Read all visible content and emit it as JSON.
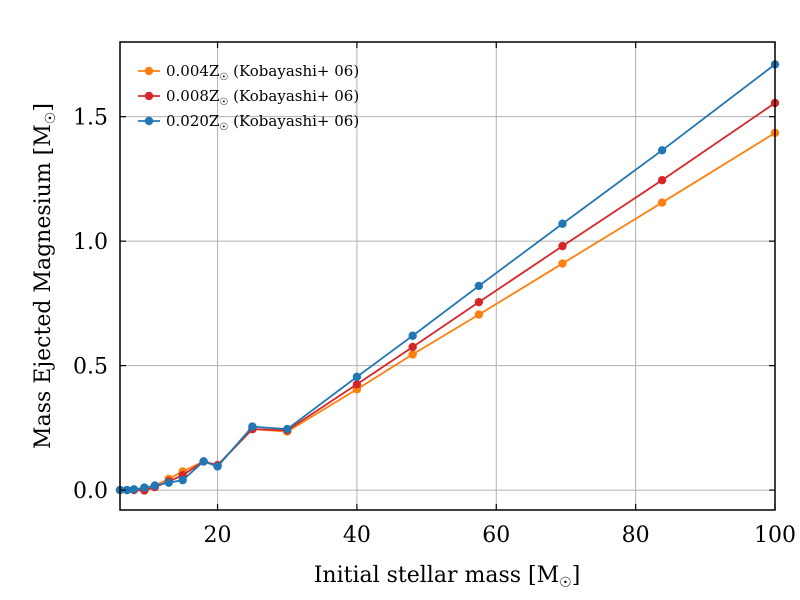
{
  "chart_data": {
    "type": "line",
    "xlabel": "Initial stellar mass [M",
    "ylabel": "Mass Ejected Magnesium [M",
    "xlim": [
      6,
      100
    ],
    "ylim": [
      -0.08,
      1.8
    ],
    "xticks": [
      20,
      40,
      60,
      80,
      100
    ],
    "yticks": [
      0.0,
      0.5,
      1.0,
      1.5
    ],
    "xtick_labels": [
      "20",
      "40",
      "60",
      "80",
      "100"
    ],
    "ytick_labels": [
      "0.0",
      "0.5",
      "1.0",
      "1.5"
    ],
    "grid": true,
    "legend_position": "top-left",
    "series": [
      {
        "name": "0.004Z",
        "name_suffix": " (Kobayashi+ 06)",
        "color": "#ff7f0e",
        "x": [
          6,
          7,
          8,
          9.5,
          11,
          13,
          15,
          18,
          20,
          25,
          30,
          40,
          48,
          57.5,
          69.5,
          83.8,
          100
        ],
        "y": [
          0.0,
          0.0,
          0.002,
          0.008,
          0.018,
          0.045,
          0.075,
          0.115,
          0.1,
          0.245,
          0.235,
          0.405,
          0.545,
          0.705,
          0.91,
          1.155,
          1.435
        ]
      },
      {
        "name": "0.008Z",
        "name_suffix": " (Kobayashi+ 06)",
        "color": "#d62728",
        "x": [
          6,
          7,
          8,
          9.5,
          11,
          13,
          15,
          18,
          20,
          25,
          30,
          40,
          48,
          57.5,
          69.5,
          83.8,
          100
        ],
        "y": [
          0.0,
          0.0,
          0.0,
          -0.002,
          0.012,
          0.035,
          0.06,
          0.115,
          0.1,
          0.245,
          0.24,
          0.425,
          0.575,
          0.755,
          0.98,
          1.245,
          1.555
        ]
      },
      {
        "name": "0.020Z",
        "name_suffix": " (Kobayashi+ 06)",
        "color": "#1f77b4",
        "x": [
          6,
          7,
          8,
          9.5,
          11,
          13,
          15,
          18,
          20,
          25,
          30,
          40,
          48,
          57.5,
          69.5,
          83.8,
          100
        ],
        "y": [
          0.0,
          0.0,
          0.003,
          0.01,
          0.018,
          0.03,
          0.04,
          0.115,
          0.095,
          0.255,
          0.245,
          0.455,
          0.62,
          0.82,
          1.07,
          1.365,
          1.71
        ]
      }
    ]
  }
}
